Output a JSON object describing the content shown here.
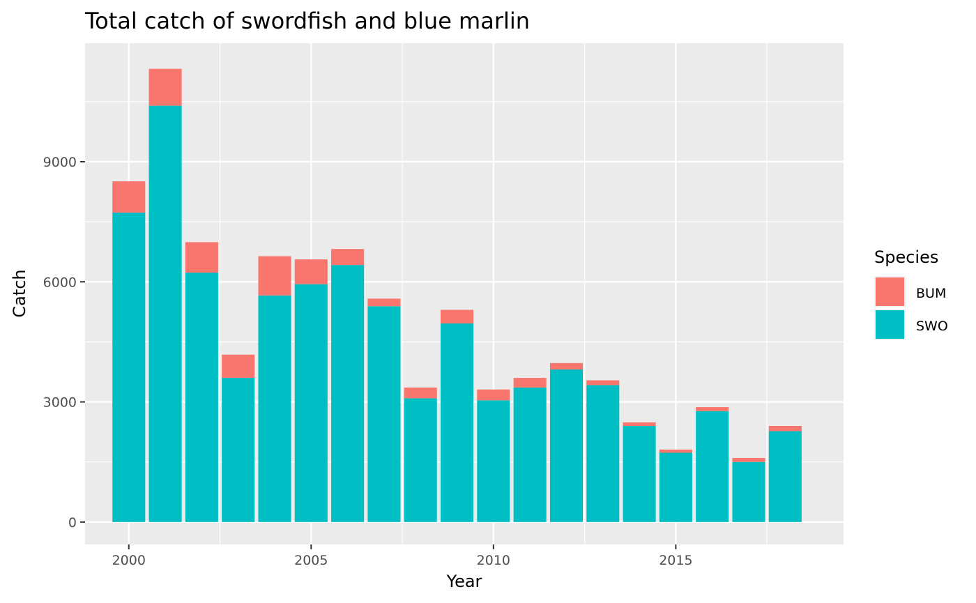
{
  "chart_data": {
    "type": "bar",
    "stacked": true,
    "title": "Total catch of swordfish and blue marlin",
    "xlabel": "Year",
    "ylabel": "Catch",
    "x": [
      2000,
      2001,
      2002,
      2003,
      2004,
      2005,
      2006,
      2007,
      2008,
      2009,
      2010,
      2011,
      2012,
      2013,
      2014,
      2015,
      2016,
      2017,
      2018
    ],
    "series": [
      {
        "name": "SWO",
        "color": "#00BFC4",
        "values": [
          7730,
          10400,
          6230,
          3600,
          5660,
          5940,
          6420,
          5390,
          3090,
          4960,
          3040,
          3360,
          3810,
          3420,
          2400,
          1730,
          2770,
          1500,
          2270
        ]
      },
      {
        "name": "BUM",
        "color": "#F8766D",
        "values": [
          780,
          920,
          760,
          580,
          980,
          620,
          400,
          190,
          270,
          340,
          270,
          240,
          160,
          120,
          90,
          80,
          100,
          100,
          130
        ]
      }
    ],
    "xlim": [
      1998.8,
      2019.6
    ],
    "xticks": [
      2000,
      2005,
      2010,
      2015
    ],
    "ylim": [
      -560,
      11960
    ],
    "yticks": [
      0,
      3000,
      6000,
      9000
    ],
    "legend": {
      "title": "Species",
      "position": "right",
      "items": [
        "BUM",
        "SWO"
      ]
    },
    "grid": true
  }
}
